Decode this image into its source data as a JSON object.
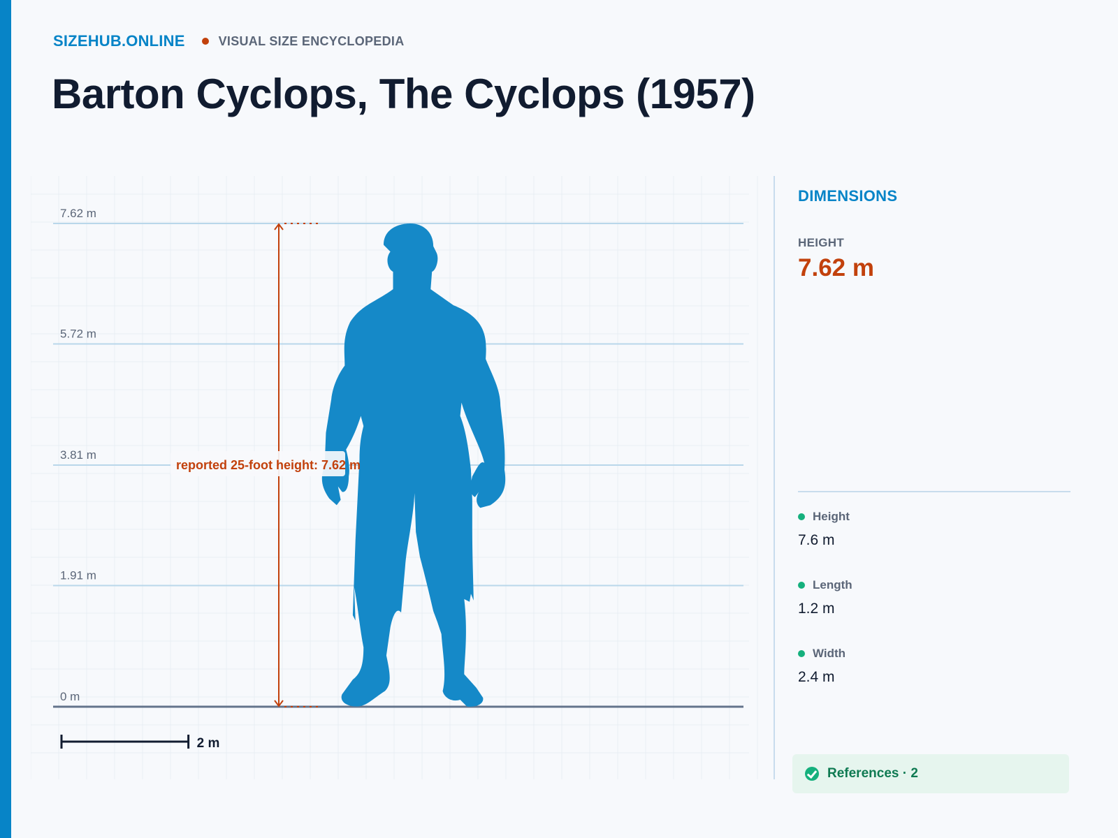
{
  "header": {
    "brand": "SIZEHUB.ONLINE",
    "tagline": "VISUAL SIZE ENCYCLOPEDIA",
    "title": "Barton Cyclops, The Cyclops (1957)"
  },
  "chart_data": {
    "type": "height-comparison",
    "y_unit": "m",
    "ylim": [
      0,
      7.62
    ],
    "ticks": [
      {
        "value": 7.62,
        "label": "7.62 m"
      },
      {
        "value": 5.72,
        "label": "5.72 m"
      },
      {
        "value": 3.81,
        "label": "3.81 m"
      },
      {
        "value": 1.91,
        "label": "1.91 m"
      },
      {
        "value": 0,
        "label": "0 m"
      }
    ],
    "subject": {
      "height": 7.62
    },
    "annotation": {
      "label": "reported 25-foot height: 7.62 m",
      "value": 7.62
    },
    "scale_bar": {
      "label": "2 m",
      "value": 2
    }
  },
  "panel": {
    "heading": "DIMENSIONS",
    "hero_label": "HEIGHT",
    "hero_value": "7.62 m",
    "dimensions": [
      {
        "label": "Height",
        "value": "7.6 m"
      },
      {
        "label": "Length",
        "value": "1.2 m"
      },
      {
        "label": "Width",
        "value": "2.4 m"
      }
    ],
    "references_label": "References · 2"
  },
  "colors": {
    "accent": "#0784c7",
    "highlight": "#c2410c",
    "silhouette": "#1589c8",
    "success": "#15b07d"
  }
}
